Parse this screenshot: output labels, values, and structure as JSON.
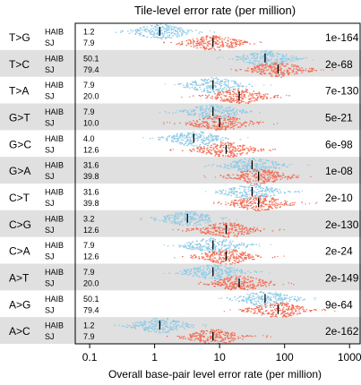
{
  "chart_data": {
    "type": "scatter",
    "title": "Tile-level error rate (per million)",
    "xlabel": "Overall base-pair level error rate (per million)",
    "x_scale": "log",
    "xlim": [
      0.06,
      1500
    ],
    "x_ticks": [
      0.1,
      1,
      10,
      100,
      1000
    ],
    "x_tick_labels": [
      "0.1",
      "1",
      "10",
      "100",
      "1000"
    ],
    "series": [
      {
        "name": "HAIB",
        "color": "#8ecae6"
      },
      {
        "name": "SJ",
        "color": "#f26d55"
      }
    ],
    "groups": [
      {
        "label": "T>G",
        "pvalue": "1e-164",
        "shaded": false,
        "rows": [
          {
            "lab": "HAIB",
            "value": 1.2,
            "value_label": "1.2"
          },
          {
            "lab": "SJ",
            "value": 7.9,
            "value_label": "7.9"
          }
        ]
      },
      {
        "label": "T>C",
        "pvalue": "2e-68",
        "shaded": true,
        "rows": [
          {
            "lab": "HAIB",
            "value": 50.1,
            "value_label": "50.1"
          },
          {
            "lab": "SJ",
            "value": 79.4,
            "value_label": "79.4"
          }
        ]
      },
      {
        "label": "T>A",
        "pvalue": "7e-130",
        "shaded": false,
        "rows": [
          {
            "lab": "HAIB",
            "value": 7.9,
            "value_label": "7.9"
          },
          {
            "lab": "SJ",
            "value": 20.0,
            "value_label": "20.0"
          }
        ]
      },
      {
        "label": "G>T",
        "pvalue": "5e-21",
        "shaded": true,
        "rows": [
          {
            "lab": "HAIB",
            "value": 7.9,
            "value_label": "7.9"
          },
          {
            "lab": "SJ",
            "value": 10.0,
            "value_label": "10.0"
          }
        ]
      },
      {
        "label": "G>C",
        "pvalue": "6e-98",
        "shaded": false,
        "rows": [
          {
            "lab": "HAIB",
            "value": 4.0,
            "value_label": "4.0"
          },
          {
            "lab": "SJ",
            "value": 12.6,
            "value_label": "12.6"
          }
        ]
      },
      {
        "label": "G>A",
        "pvalue": "1e-08",
        "shaded": true,
        "rows": [
          {
            "lab": "HAIB",
            "value": 31.6,
            "value_label": "31.6"
          },
          {
            "lab": "SJ",
            "value": 39.8,
            "value_label": "39.8"
          }
        ]
      },
      {
        "label": "C>T",
        "pvalue": "2e-10",
        "shaded": false,
        "rows": [
          {
            "lab": "HAIB",
            "value": 31.6,
            "value_label": "31.6"
          },
          {
            "lab": "SJ",
            "value": 39.8,
            "value_label": "39.8"
          }
        ]
      },
      {
        "label": "C>G",
        "pvalue": "2e-130",
        "shaded": true,
        "rows": [
          {
            "lab": "HAIB",
            "value": 3.2,
            "value_label": "3.2"
          },
          {
            "lab": "SJ",
            "value": 12.6,
            "value_label": "12.6"
          }
        ]
      },
      {
        "label": "C>A",
        "pvalue": "2e-24",
        "shaded": false,
        "rows": [
          {
            "lab": "HAIB",
            "value": 7.9,
            "value_label": "7.9"
          },
          {
            "lab": "SJ",
            "value": 12.6,
            "value_label": "12.6"
          }
        ]
      },
      {
        "label": "A>T",
        "pvalue": "2e-149",
        "shaded": true,
        "rows": [
          {
            "lab": "HAIB",
            "value": 7.9,
            "value_label": "7.9"
          },
          {
            "lab": "SJ",
            "value": 20.0,
            "value_label": "20.0"
          }
        ]
      },
      {
        "label": "A>G",
        "pvalue": "9e-64",
        "shaded": false,
        "rows": [
          {
            "lab": "HAIB",
            "value": 50.1,
            "value_label": "50.1"
          },
          {
            "lab": "SJ",
            "value": 79.4,
            "value_label": "79.4"
          }
        ]
      },
      {
        "label": "A>C",
        "pvalue": "2e-162",
        "shaded": true,
        "rows": [
          {
            "lab": "HAIB",
            "value": 1.2,
            "value_label": "1.2"
          },
          {
            "lab": "SJ",
            "value": 7.9,
            "value_label": "7.9"
          }
        ]
      }
    ]
  }
}
